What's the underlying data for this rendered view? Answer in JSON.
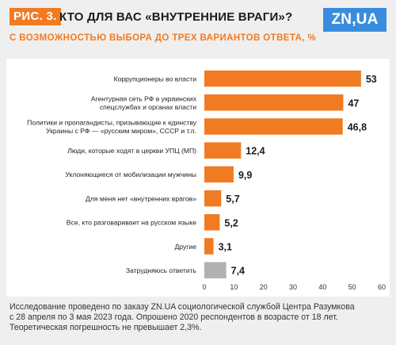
{
  "header": {
    "fig_label": "РИС. 3.",
    "title": "КТО ДЛЯ ВАС «ВНУТРЕННИЕ ВРАГИ»?",
    "subtitle": "С ВОЗМОЖНОСТЬЮ ВЫБОРА ДО ТРЕХ ВАРИАНТОВ ОТВЕТА, %",
    "logo_text": "ZN,UA"
  },
  "colors": {
    "bar": "#f07b22",
    "bar_muted": "#b1b1b1",
    "brand": "#3a8dde"
  },
  "chart_data": {
    "type": "bar",
    "orientation": "horizontal",
    "categories": [
      [
        "Коррупционеры во власти"
      ],
      [
        "Агентурная сеть РФ в украинских",
        "спецслужбах и органах власти"
      ],
      [
        "Политики и пропагандисты, призывающие к единству",
        "Украины с РФ — «русским миром», СССР и т.п."
      ],
      [
        "Люди, которые ходят в церкви УПЦ (МП)"
      ],
      [
        "Уклоняющиеся от мобилизации мужчины"
      ],
      [
        "Для меня нет «внутренних врагов»"
      ],
      [
        "Все, кто разговаривает на русском языке"
      ],
      [
        "Другие"
      ],
      [
        "Затрудняюсь ответить"
      ]
    ],
    "values": [
      53,
      47,
      46.8,
      12.4,
      9.9,
      5.7,
      5.2,
      3.1,
      7.4
    ],
    "value_labels": [
      "53",
      "47",
      "46,8",
      "12,4",
      "9,9",
      "5,7",
      "5,2",
      "3,1",
      "7,4"
    ],
    "muted": [
      false,
      false,
      false,
      false,
      false,
      false,
      false,
      false,
      true
    ],
    "xlim": [
      0,
      60
    ],
    "xticks": [
      0,
      10,
      20,
      30,
      40,
      50,
      60
    ],
    "grid": false
  },
  "footnote": [
    "Исследование проведено по заказу ZN.UA социологической службой Центра Разумкова",
    "с 28 апреля по 3 мая 2023 года. Опрошено 2020 респондентов в возрасте от 18 лет.",
    "Теоретическая погрешность не превышает 2,3%."
  ]
}
